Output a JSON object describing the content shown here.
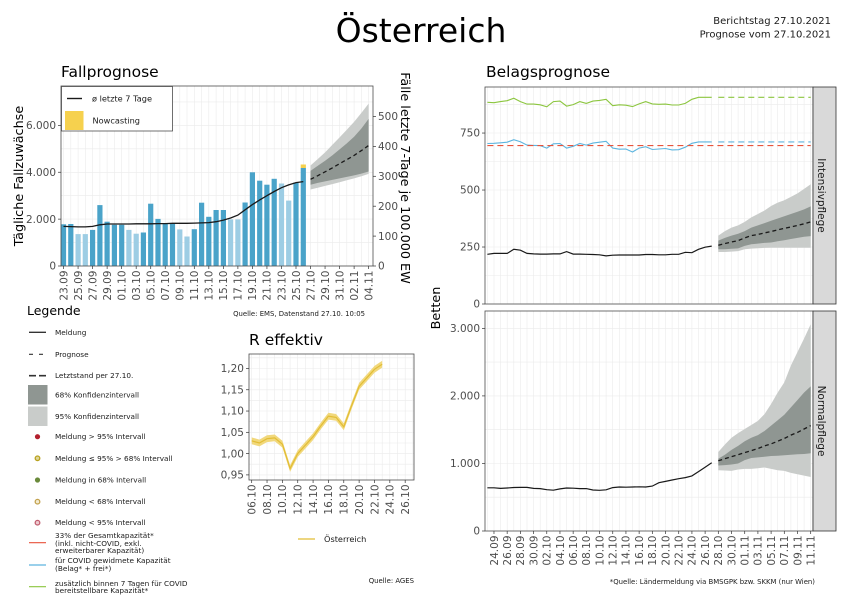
{
  "header": {
    "title": "Österreich",
    "report_date": "Berichtstag 27.10.2021",
    "forecast_date": "Prognose vom 27.10.2021"
  },
  "legend": {
    "title": "Legende",
    "items": [
      {
        "symbol": "solid-line",
        "label": "Meldung"
      },
      {
        "symbol": "dashed-line",
        "label": "Prognose"
      },
      {
        "symbol": "long-dashed-line",
        "label": "Letztstand per 27.10."
      },
      {
        "symbol": "box",
        "label": "68% Konfidenzintervall",
        "color": "#8f9692"
      },
      {
        "symbol": "box",
        "label": "95% Konfidenzintervall",
        "color": "#c9ccca"
      },
      {
        "symbol": "dot",
        "label": "Meldung > 95% Intervall",
        "color": "#b3202e"
      },
      {
        "symbol": "ring",
        "label": "Meldung ≤ 95% > 68% Intervall",
        "color": "#b8a21e"
      },
      {
        "symbol": "dot",
        "label": "Meldung in 68% Intervall",
        "color": "#6a8a3b"
      },
      {
        "symbol": "ring",
        "label": "Meldung < 68% Intervall",
        "color": "#c3a24e"
      },
      {
        "symbol": "ring",
        "label": "Meldung < 95% Intervall",
        "color": "#c25f70"
      },
      {
        "symbol": "line",
        "lines": [
          "33% der Gesamtkapazität*",
          "(inkl. nicht-COVID, exkl.",
          "erweiterbarer Kapazität)"
        ],
        "color": "#e8533b"
      },
      {
        "symbol": "line",
        "lines": [
          "für COVID gewidmete Kapazität",
          "(Belag* + frei*)"
        ],
        "color": "#5db5df"
      },
      {
        "symbol": "line",
        "lines": [
          "zusätzlich binnen 7 Tagen für COVID",
          "bereitstellbare Kapazität*"
        ],
        "color": "#8cc63f"
      }
    ]
  },
  "chart_data": [
    {
      "type": "bar",
      "title": "Fallprognose",
      "ylabel": "Tägliche Fallzuwächse",
      "ylabel_right": "Fälle letzte 7-Tage je 100.000 EW",
      "xlim": [
        "23.09",
        "04.11"
      ],
      "ylim": [
        0,
        7680
      ],
      "ylim_right": [
        0,
        602
      ],
      "yticks": [
        0,
        2000,
        4000,
        6000
      ],
      "ytick_labels": [
        "0",
        "2.000",
        "4.000",
        "6.000"
      ],
      "yticks_right": [
        0,
        100,
        200,
        300,
        400,
        500
      ],
      "ytick_labels_right": [
        "0",
        "100",
        "200",
        "300",
        "400",
        "500"
      ],
      "xtick_labels": [
        "23.09",
        "25.09",
        "27.09",
        "29.09",
        "01.10",
        "03.10",
        "05.10",
        "07.10",
        "09.10",
        "11.10",
        "13.10",
        "15.10",
        "17.10",
        "19.10",
        "21.10",
        "23.10",
        "25.10",
        "27.10",
        "29.10",
        "31.10",
        "02.11",
        "04.11"
      ],
      "legend": [
        "ø letzte 7 Tage",
        "Nowcasting"
      ],
      "legend_position": "top-left",
      "grid": true,
      "bars": {
        "dates": [
          "23.09",
          "24.09",
          "25.09",
          "26.09",
          "27.09",
          "28.09",
          "29.09",
          "30.09",
          "01.10",
          "02.10",
          "03.10",
          "04.10",
          "05.10",
          "06.10",
          "07.10",
          "08.10",
          "09.10",
          "10.10",
          "11.10",
          "12.10",
          "13.10",
          "14.10",
          "15.10",
          "16.10",
          "17.10",
          "18.10",
          "19.10",
          "20.10",
          "21.10",
          "22.10",
          "23.10",
          "24.10",
          "25.10",
          "26.10"
        ],
        "values": [
          1780,
          1790,
          1360,
          1360,
          1540,
          2600,
          1890,
          1760,
          1760,
          1540,
          1380,
          1430,
          2660,
          2010,
          1790,
          1810,
          1560,
          1260,
          1570,
          2700,
          2100,
          2390,
          2390,
          1990,
          1990,
          2710,
          4000,
          3640,
          3470,
          3720,
          3520,
          2790,
          3560,
          4180
        ],
        "weekend": [
          false,
          false,
          true,
          true,
          false,
          false,
          false,
          false,
          false,
          true,
          true,
          false,
          false,
          false,
          false,
          false,
          true,
          true,
          false,
          false,
          false,
          false,
          false,
          true,
          true,
          false,
          false,
          false,
          false,
          false,
          true,
          true,
          false,
          false
        ]
      },
      "nowcasting": {
        "date": "26.10",
        "value": 150
      },
      "avg7": [
        1690,
        1680,
        1670,
        1670,
        1690,
        1760,
        1790,
        1790,
        1790,
        1790,
        1800,
        1800,
        1800,
        1810,
        1810,
        1820,
        1820,
        1820,
        1830,
        1840,
        1850,
        1890,
        1960,
        2050,
        2170,
        2400,
        2620,
        2820,
        3000,
        3180,
        3340,
        3460,
        3560,
        3600
      ],
      "forecast": {
        "unit": "Fälle letzte 7-Tage je 100.000 EW",
        "dates": [
          "27.10",
          "28.10",
          "29.10",
          "30.10",
          "31.10",
          "01.11",
          "02.11",
          "03.11",
          "04.11"
        ],
        "median": [
          290,
          302,
          315,
          328,
          342,
          356,
          370,
          386,
          403
        ],
        "ci68_low": [
          272,
          278,
          283,
          288,
          293,
          298,
          303,
          309,
          316
        ],
        "ci68_high": [
          318,
          335,
          352,
          370,
          390,
          410,
          432,
          460,
          492
        ],
        "ci95_low": [
          256,
          262,
          268,
          274,
          280,
          287,
          293,
          300,
          308
        ],
        "ci95_high": [
          336,
          358,
          380,
          405,
          430,
          456,
          482,
          512,
          543
        ]
      },
      "source": "Quelle: EMS, Datenstand 27.10. 10:05",
      "colors": {
        "bar": "#4aa3c9",
        "bar_weekend": "#9dcde4",
        "nowcasting": "#f6d14e",
        "avg_line": "#1a1a1a",
        "forecast_line": "#1a1a1a",
        "ci68": "#8f9692",
        "ci95": "#c9ccca"
      }
    },
    {
      "type": "line",
      "title": "R effektiv",
      "xlim": [
        "06.10",
        "26.10"
      ],
      "ylim": [
        0.938,
        1.234
      ],
      "yticks": [
        0.95,
        1.0,
        1.05,
        1.1,
        1.15,
        1.2
      ],
      "ytick_labels": [
        "0,95",
        "1,00",
        "1,05",
        "1,10",
        "1,15",
        "1,20"
      ],
      "xtick_labels": [
        "06.10",
        "08.10",
        "10.10",
        "12.10",
        "14.10",
        "16.10",
        "18.10",
        "20.10",
        "22.10",
        "24.10",
        "26.10"
      ],
      "grid": true,
      "legend_position": "bottom",
      "series": [
        {
          "name": "Österreich",
          "dates": [
            "06.10",
            "07.10",
            "08.10",
            "09.10",
            "10.10",
            "11.10",
            "12.10",
            "13.10",
            "14.10",
            "15.10",
            "16.10",
            "17.10",
            "18.10",
            "19.10",
            "20.10",
            "21.10",
            "22.10",
            "23.10"
          ],
          "values": [
            1.03,
            1.025,
            1.035,
            1.037,
            1.022,
            0.965,
            1.0,
            1.02,
            1.04,
            1.065,
            1.088,
            1.085,
            1.063,
            1.112,
            1.158,
            1.178,
            1.198,
            1.21
          ],
          "ci_low": [
            1.022,
            1.017,
            1.027,
            1.029,
            1.014,
            0.957,
            0.992,
            1.012,
            1.032,
            1.057,
            1.08,
            1.077,
            1.055,
            1.104,
            1.15,
            1.17,
            1.19,
            1.202
          ],
          "ci_high": [
            1.038,
            1.033,
            1.043,
            1.045,
            1.03,
            0.973,
            1.008,
            1.028,
            1.048,
            1.073,
            1.096,
            1.093,
            1.071,
            1.12,
            1.166,
            1.186,
            1.206,
            1.218
          ]
        }
      ],
      "source": "Quelle: AGES",
      "colors": {
        "line": "#e2bd35",
        "band": "#f1d87c"
      }
    },
    {
      "type": "line",
      "title": "Belagsprognose",
      "panel": "Intensivpflege",
      "ylabel": "Betten",
      "xlim": [
        "24.09",
        "11.11"
      ],
      "ylim": [
        0,
        952
      ],
      "yticks": [
        0,
        250,
        500,
        750
      ],
      "ytick_labels": [
        "0",
        "250",
        "500",
        "750"
      ],
      "grid": true,
      "dates": [
        "23.09",
        "24.09",
        "25.09",
        "26.09",
        "27.09",
        "28.09",
        "29.09",
        "30.09",
        "01.10",
        "02.10",
        "03.10",
        "04.10",
        "05.10",
        "06.10",
        "07.10",
        "08.10",
        "09.10",
        "10.10",
        "11.10",
        "12.10",
        "13.10",
        "14.10",
        "15.10",
        "16.10",
        "17.10",
        "18.10",
        "19.10",
        "20.10",
        "21.10",
        "22.10",
        "23.10",
        "24.10",
        "25.10",
        "26.10",
        "27.10"
      ],
      "series": [
        {
          "name": "Meldung",
          "values": [
            218,
            222,
            222,
            222,
            240,
            236,
            222,
            220,
            219,
            219,
            220,
            220,
            230,
            219,
            219,
            218,
            217,
            216,
            211,
            214,
            215,
            215,
            215,
            215,
            217,
            217,
            216,
            216,
            218,
            218,
            227,
            225,
            240,
            249,
            254
          ]
        },
        {
          "name": "für COVID gewidmete Kapazität (Belag* + frei*)",
          "values": [
            704,
            705,
            707,
            710,
            721,
            712,
            697,
            696,
            695,
            684,
            703,
            704,
            684,
            692,
            704,
            697,
            706,
            710,
            714,
            684,
            679,
            680,
            667,
            684,
            690,
            678,
            680,
            682,
            676,
            677,
            688,
            705,
            711,
            711,
            711
          ]
        },
        {
          "name": "zusätzlich binnen 7 Tagen für COVID bereitstellbare Kapazität*",
          "values": [
            885,
            883,
            888,
            892,
            903,
            888,
            877,
            877,
            874,
            865,
            888,
            890,
            868,
            875,
            888,
            880,
            890,
            893,
            898,
            870,
            874,
            872,
            866,
            878,
            888,
            878,
            876,
            877,
            873,
            873,
            880,
            898,
            907,
            907,
            907
          ]
        }
      ],
      "capacity_33pct": {
        "name": "33% der Gesamtkapazität*",
        "value": 695
      },
      "forecast": {
        "dates": [
          "28.10",
          "29.10",
          "30.10",
          "31.10",
          "01.11",
          "02.11",
          "03.11",
          "04.11",
          "05.11",
          "06.11",
          "07.11",
          "08.11",
          "09.11",
          "10.11",
          "11.11"
        ],
        "median": [
          258,
          265,
          272,
          278,
          290,
          300,
          305,
          312,
          318,
          325,
          332,
          338,
          345,
          352,
          360
        ],
        "ci68_low": [
          240,
          240,
          242,
          244,
          255,
          262,
          265,
          268,
          270,
          275,
          280,
          285,
          290,
          295,
          298
        ],
        "ci68_high": [
          278,
          290,
          300,
          308,
          320,
          335,
          345,
          355,
          365,
          375,
          385,
          395,
          405,
          415,
          428
        ],
        "ci95_low": [
          228,
          228,
          230,
          232,
          240,
          243,
          245,
          246,
          247,
          247,
          247,
          247,
          247,
          247,
          247
        ],
        "ci95_high": [
          300,
          320,
          335,
          345,
          360,
          380,
          395,
          410,
          430,
          445,
          455,
          470,
          485,
          505,
          525
        ],
        "covid_capacity": 711,
        "additional_capacity": 907
      },
      "colors": {
        "occupancy": "#1a1a1a",
        "capacity_33pct": "#e8533b",
        "covid_capacity": "#5db5df",
        "additional_capacity": "#8cc63f",
        "ci68": "#8f9692",
        "ci95": "#c9ccca",
        "strip": "#d9d9d9"
      }
    },
    {
      "type": "line",
      "panel": "Normalpflege",
      "xlim": [
        "24.09",
        "11.11"
      ],
      "ylim": [
        0,
        3257
      ],
      "yticks": [
        0,
        1000,
        2000,
        3000
      ],
      "ytick_labels": [
        "0",
        "1.000",
        "2.000",
        "3.000"
      ],
      "xtick_labels": [
        "24.09",
        "26.09",
        "28.09",
        "30.09",
        "02.10",
        "04.10",
        "06.10",
        "08.10",
        "10.10",
        "12.10",
        "14.10",
        "16.10",
        "18.10",
        "20.10",
        "22.10",
        "24.10",
        "26.10",
        "28.10",
        "30.10",
        "01.11",
        "03.11",
        "05.11",
        "07.11",
        "09.11",
        "11.11"
      ],
      "grid": true,
      "dates": [
        "23.09",
        "24.09",
        "25.09",
        "26.09",
        "27.09",
        "28.09",
        "29.09",
        "30.09",
        "01.10",
        "02.10",
        "03.10",
        "04.10",
        "05.10",
        "06.10",
        "07.10",
        "08.10",
        "09.10",
        "10.10",
        "11.10",
        "12.10",
        "13.10",
        "14.10",
        "15.10",
        "16.10",
        "17.10",
        "18.10",
        "19.10",
        "20.10",
        "21.10",
        "22.10",
        "23.10",
        "24.10",
        "25.10",
        "26.10",
        "27.10"
      ],
      "series": [
        {
          "name": "Meldung",
          "values": [
            640,
            640,
            630,
            636,
            644,
            646,
            645,
            630,
            628,
            612,
            604,
            624,
            636,
            634,
            628,
            628,
            607,
            603,
            610,
            642,
            652,
            648,
            652,
            655,
            652,
            665,
            715,
            735,
            755,
            775,
            790,
            815,
            880,
            945,
            1010
          ]
        }
      ],
      "forecast": {
        "dates": [
          "28.10",
          "29.10",
          "30.10",
          "31.10",
          "01.11",
          "02.11",
          "03.11",
          "04.11",
          "05.11",
          "06.11",
          "07.11",
          "08.11",
          "09.11",
          "10.11",
          "11.11"
        ],
        "median": [
          1040,
          1070,
          1100,
          1130,
          1160,
          1190,
          1220,
          1260,
          1290,
          1330,
          1370,
          1420,
          1460,
          1510,
          1560
        ],
        "ci68_low": [
          970,
          975,
          985,
          1000,
          1050,
          1080,
          1090,
          1100,
          1110,
          1115,
          1120,
          1130,
          1135,
          1140,
          1150
        ],
        "ci68_high": [
          1070,
          1130,
          1200,
          1260,
          1330,
          1380,
          1420,
          1480,
          1560,
          1640,
          1720,
          1830,
          1940,
          2050,
          2140
        ],
        "ci95_low": [
          900,
          895,
          890,
          910,
          920,
          920,
          930,
          940,
          920,
          900,
          890,
          860,
          840,
          820,
          800
        ],
        "ci95_high": [
          1170,
          1280,
          1380,
          1450,
          1510,
          1570,
          1630,
          1730,
          1880,
          2050,
          2200,
          2450,
          2650,
          2850,
          3060
        ]
      },
      "source": "*Quelle: Ländermeldung via BMSGPK bzw. SKKM (nur Wien)",
      "colors": {
        "occupancy": "#1a1a1a",
        "ci68": "#8f9692",
        "ci95": "#c9ccca",
        "strip": "#d9d9d9"
      }
    }
  ]
}
